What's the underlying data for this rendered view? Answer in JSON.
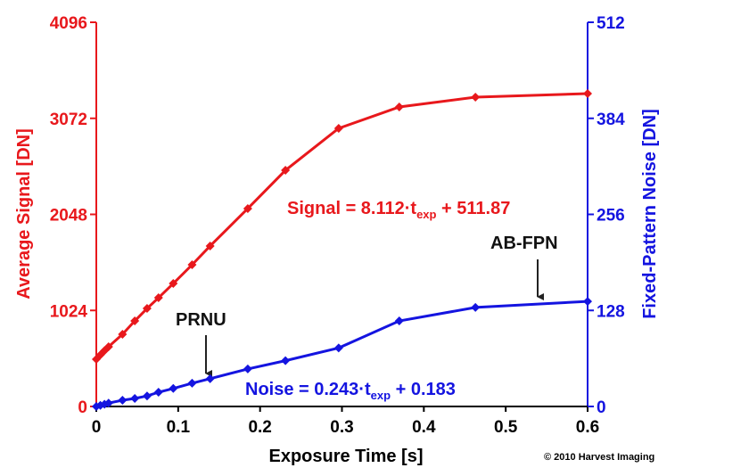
{
  "chart_data": {
    "type": "line",
    "x_label": "Exposure Time [s]",
    "y_label": "Average Signal [DN]",
    "y2_label": "Fixed-Pattern Noise [DN]",
    "xlim": [
      0,
      0.6
    ],
    "xticks": [
      0,
      0.1,
      0.2,
      0.3,
      0.4,
      0.5,
      0.6
    ],
    "ylim": [
      0,
      4096
    ],
    "yticks": [
      0,
      1024,
      2048,
      3072,
      4096
    ],
    "y2lim": [
      0,
      512
    ],
    "y2ticks": [
      0,
      128,
      256,
      384,
      512
    ],
    "series": [
      {
        "color": "#e8181c",
        "axis": "y",
        "x": [
          0,
          0.005,
          0.01,
          0.015,
          0.032,
          0.047,
          0.062,
          0.076,
          0.094,
          0.117,
          0.139,
          0.185,
          0.231,
          0.296,
          0.37,
          0.463,
          0.6
        ],
        "values": [
          504,
          550,
          595,
          637,
          770,
          912,
          1045,
          1159,
          1311,
          1511,
          1711,
          2110,
          2518,
          2965,
          3193,
          3298,
          3336
        ]
      },
      {
        "color": "#1414e0",
        "axis": "y2",
        "x": [
          0,
          0.005,
          0.01,
          0.015,
          0.032,
          0.047,
          0.062,
          0.076,
          0.094,
          0.117,
          0.139,
          0.185,
          0.231,
          0.296,
          0.37,
          0.463,
          0.6
        ],
        "values": [
          0,
          1.5,
          3,
          4.5,
          8.3,
          10.7,
          14,
          19,
          24,
          31,
          37,
          50,
          61,
          78,
          114,
          132,
          140
        ]
      }
    ],
    "annotations": [
      {
        "text": "Signal = 8.112·t",
        "sub": "exp",
        "rest": " + 511.87"
      },
      {
        "text": "Noise = 0.243·t",
        "sub": "exp",
        "rest": " + 0.183"
      },
      {
        "text": "PRNU"
      },
      {
        "text": "AB-FPN"
      }
    ],
    "copyright": "© 2010 Harvest Imaging"
  }
}
